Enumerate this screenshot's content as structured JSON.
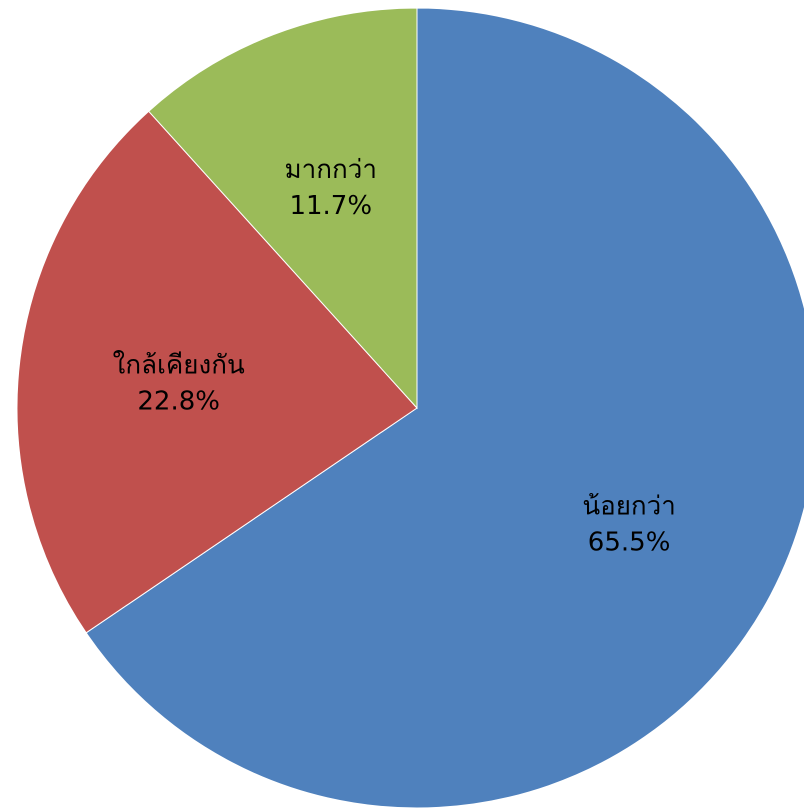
{
  "chart_data": {
    "type": "pie",
    "title": "",
    "start_angle_deg": 0,
    "direction": "clockwise",
    "slices": [
      {
        "label": "น้อยกว่า",
        "value": 65.5,
        "value_label": "65.5%",
        "color": "#4F81BD"
      },
      {
        "label": "ใกล้เคียงกัน",
        "value": 22.8,
        "value_label": "22.8%",
        "color": "#C0504D"
      },
      {
        "label": "มากกว่า",
        "value": 11.7,
        "value_label": "11.7%",
        "color": "#9BBB59"
      }
    ],
    "legend": "none"
  }
}
